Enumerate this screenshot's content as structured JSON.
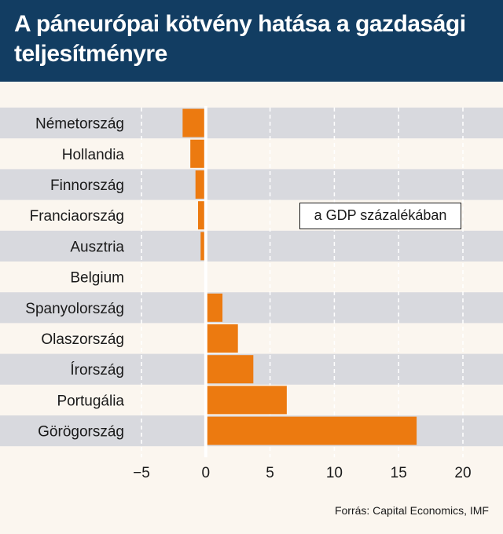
{
  "header": {
    "title_line1": "A páneurópai kötvény hatása a gazdasági",
    "title_line2": "teljesítményre"
  },
  "unit_label": "a GDP százalékában",
  "source": "Forrás: Capital Economics, IMF",
  "colors": {
    "header_bg": "#123d62",
    "bar": "#ec7a10",
    "stripe": "#d8d9de",
    "background": "#fbf6ef"
  },
  "chart_data": {
    "type": "bar",
    "orientation": "horizontal",
    "categories": [
      "Németország",
      "Hollandia",
      "Finnország",
      "Franciaország",
      "Ausztria",
      "Belgium",
      "Spanyolország",
      "Olaszország",
      "Írország",
      "Portugália",
      "Görögország"
    ],
    "values": [
      -1.8,
      -1.2,
      -0.8,
      -0.6,
      -0.4,
      0.1,
      1.3,
      2.5,
      3.7,
      6.3,
      16.4
    ],
    "xlim": [
      -5,
      20
    ],
    "xticks": [
      "−5",
      "0",
      "5",
      "10",
      "15",
      "20"
    ],
    "xtick_values": [
      -5,
      0,
      5,
      10,
      15,
      20
    ],
    "grid": "vertical dashed",
    "title": "A páneurópai kötvény hatása a gazdasági teljesítményre"
  }
}
